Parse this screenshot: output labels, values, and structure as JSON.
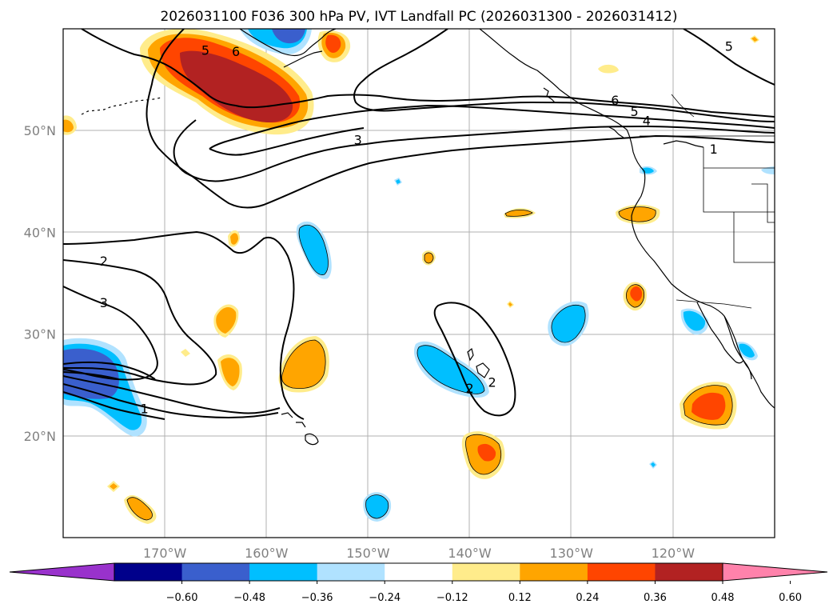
{
  "title": "2026031100 F036 300 hPa PV, IVT Landfall PC (2026031300 - 2026031412)",
  "map": {
    "lon_range": [
      -180,
      -110
    ],
    "lat_range": [
      10,
      60
    ],
    "lon_ticks": [
      {
        "value": -170,
        "label": "170°W"
      },
      {
        "value": -160,
        "label": "160°W"
      },
      {
        "value": -150,
        "label": "150°W"
      },
      {
        "value": -140,
        "label": "140°W"
      },
      {
        "value": -130,
        "label": "130°W"
      },
      {
        "value": -120,
        "label": "120°W"
      }
    ],
    "lat_ticks": [
      {
        "value": 50,
        "label": "50°N"
      },
      {
        "value": 40,
        "label": "40°N"
      },
      {
        "value": 30,
        "label": "30°N"
      },
      {
        "value": 20,
        "label": "20°N"
      }
    ],
    "contour_labels": [
      {
        "text": "5",
        "lon": -166.0,
        "lat": 57.9
      },
      {
        "text": "6",
        "lon": -163.0,
        "lat": 57.8
      },
      {
        "text": "3",
        "lon": -151.0,
        "lat": 49.1
      },
      {
        "text": "2",
        "lon": -176.0,
        "lat": 37.2
      },
      {
        "text": "3",
        "lon": -176.0,
        "lat": 33.1
      },
      {
        "text": "1",
        "lon": -172.0,
        "lat": 22.7
      },
      {
        "text": "6",
        "lon": -125.7,
        "lat": 53.0
      },
      {
        "text": "5",
        "lon": -123.8,
        "lat": 51.9
      },
      {
        "text": "4",
        "lon": -122.6,
        "lat": 51.0
      },
      {
        "text": "1",
        "lon": -116.0,
        "lat": 48.2
      },
      {
        "text": "5",
        "lon": -114.5,
        "lat": 58.3
      },
      {
        "text": "2",
        "lon": -140.0,
        "lat": 24.7
      },
      {
        "text": "2",
        "lon": -137.8,
        "lat": 25.3
      }
    ]
  },
  "colorbar": {
    "ticks": [
      "−0.60",
      "−0.48",
      "−0.36",
      "−0.24",
      "−0.12",
      "0.12",
      "0.24",
      "0.36",
      "0.48",
      "0.60"
    ],
    "colors": [
      "#9932cc",
      "#00008b",
      "#3a5fcd",
      "#00bfff",
      "#b0e2ff",
      "#ffffff",
      "#ffec8b",
      "#ffa500",
      "#ff4500",
      "#b22222",
      "#ff82ab"
    ]
  },
  "colors": {
    "light_blue": "#b0e2ff",
    "blue": "#00bfff",
    "royal_blue": "#3a5fcd",
    "yellow": "#ffec8b",
    "orange": "#ffa500",
    "red_orange": "#ff4500",
    "dark_red": "#b22222"
  }
}
